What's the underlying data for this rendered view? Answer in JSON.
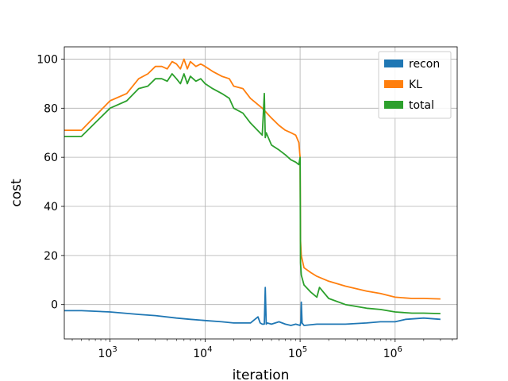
{
  "chart_data": {
    "type": "line",
    "xlabel": "iteration",
    "ylabel": "cost",
    "xscale": "log",
    "xlim": [
      330,
      4500000
    ],
    "ylim": [
      -14,
      105
    ],
    "grid": true,
    "legend_position": "upper-right",
    "x_ticks": [
      {
        "value": 1000,
        "base": "10",
        "exp": "3"
      },
      {
        "value": 10000,
        "base": "10",
        "exp": "4"
      },
      {
        "value": 100000,
        "base": "10",
        "exp": "5"
      },
      {
        "value": 1000000,
        "base": "10",
        "exp": "6"
      }
    ],
    "y_ticks": [
      {
        "value": 0,
        "label": "0"
      },
      {
        "value": 20,
        "label": "20"
      },
      {
        "value": 40,
        "label": "40"
      },
      {
        "value": 60,
        "label": "60"
      },
      {
        "value": 80,
        "label": "80"
      },
      {
        "value": 100,
        "label": "100"
      }
    ],
    "series": [
      {
        "name": "recon",
        "color": "#1f77b4",
        "x": [
          330,
          500,
          1000,
          2000,
          3000,
          5000,
          7000,
          10000,
          15000,
          20000,
          30000,
          36000,
          38000,
          40000,
          42000,
          43000,
          44000,
          45000,
          50000,
          60000,
          70000,
          80000,
          90000,
          100000,
          102000,
          103000,
          105000,
          110000,
          150000,
          200000,
          300000,
          500000,
          700000,
          1000000,
          1300000,
          2000000,
          3000000
        ],
        "y": [
          -2.5,
          -2.5,
          -3,
          -4,
          -4.5,
          -5.5,
          -6,
          -6.5,
          -7,
          -7.5,
          -7.5,
          -5,
          -7.5,
          -8,
          -8,
          7,
          -8,
          -7.5,
          -8,
          -7,
          -8,
          -8.5,
          -8,
          -8.5,
          -7,
          1,
          -7.5,
          -8.5,
          -8,
          -8,
          -8,
          -7.5,
          -7,
          -7,
          -6,
          -5.5,
          -6
        ]
      },
      {
        "name": "KL",
        "color": "#ff7f0e",
        "x": [
          330,
          500,
          1000,
          1500,
          2000,
          2500,
          3000,
          3500,
          4000,
          4500,
          5000,
          5500,
          6000,
          6500,
          7000,
          8000,
          9000,
          10000,
          12000,
          15000,
          18000,
          20000,
          25000,
          30000,
          40000,
          50000,
          60000,
          70000,
          80000,
          90000,
          97000,
          100000,
          101000,
          103000,
          110000,
          130000,
          150000,
          200000,
          300000,
          500000,
          700000,
          1000000,
          1500000,
          2000000,
          3000000
        ],
        "y": [
          71,
          71,
          83,
          86,
          92,
          94,
          97,
          97,
          96,
          99,
          98,
          96,
          100,
          96,
          99,
          97,
          98,
          97,
          95,
          93,
          92,
          89,
          88,
          84,
          80,
          76,
          73,
          71,
          70,
          69,
          66,
          60,
          26,
          20,
          15,
          13,
          11.5,
          9.5,
          7.5,
          5.5,
          4.5,
          3,
          2.5,
          2.5,
          2.3
        ]
      },
      {
        "name": "total",
        "color": "#2ca02c",
        "x": [
          330,
          500,
          1000,
          1500,
          2000,
          2500,
          3000,
          3500,
          4000,
          4500,
          5000,
          5500,
          6000,
          6500,
          7000,
          8000,
          9000,
          10000,
          12000,
          15000,
          18000,
          20000,
          25000,
          30000,
          40000,
          42000,
          43000,
          44000,
          50000,
          60000,
          70000,
          80000,
          90000,
          97000,
          100000,
          101000,
          103000,
          110000,
          130000,
          150000,
          160000,
          200000,
          300000,
          500000,
          700000,
          1000000,
          1500000,
          2000000,
          3000000
        ],
        "y": [
          68.5,
          68.5,
          80,
          83,
          88,
          89,
          92,
          92,
          91,
          94,
          92,
          90,
          94,
          90,
          93,
          91,
          92,
          90,
          88,
          86,
          84,
          80,
          78,
          74,
          69,
          86,
          68,
          70,
          65,
          63,
          61,
          59,
          58,
          57,
          60,
          17,
          12,
          8,
          5,
          3,
          7,
          2.5,
          0,
          -1.5,
          -2,
          -3,
          -3.5,
          -3.5,
          -3.7
        ]
      }
    ]
  }
}
